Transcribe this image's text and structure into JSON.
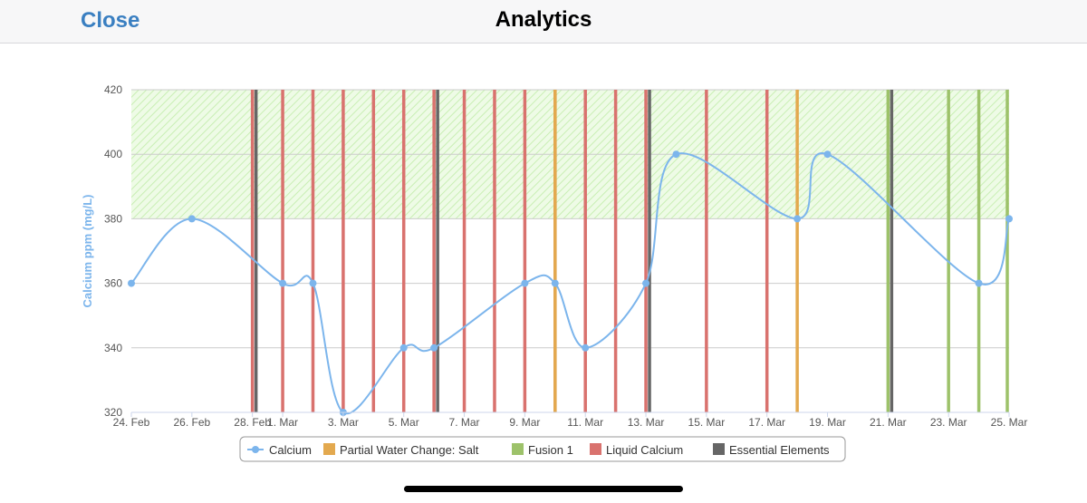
{
  "header": {
    "close_label": "Close",
    "title": "Analytics"
  },
  "colors": {
    "calcium": "#7cb5ec",
    "partial_water_change_salt": "#e3a94f",
    "fusion_1": "#9dc26a",
    "liquid_calcium": "#d9726e",
    "essential_elements": "#666666",
    "target_band": "#d8f5c8"
  },
  "chart_data": {
    "type": "line",
    "xlabel": "",
    "ylabel": "Calcium ppm (mg/L)",
    "ylim": [
      320,
      420
    ],
    "yticks": [
      320,
      340,
      360,
      380,
      400,
      420
    ],
    "xlim": [
      "24. Feb",
      "25. Mar"
    ],
    "xticks": [
      "24. Feb",
      "26. Feb",
      "28. Feb",
      "1. Mar",
      "3. Mar",
      "5. Mar",
      "7. Mar",
      "9. Mar",
      "11. Mar",
      "13. Mar",
      "15. Mar",
      "17. Mar",
      "19. Mar",
      "21. Mar",
      "23. Mar",
      "25. Mar"
    ],
    "target_range": [
      380,
      420
    ],
    "grid": true,
    "legend_position": "bottom",
    "series": [
      {
        "name": "Calcium",
        "points": [
          [
            "24. Feb",
            360
          ],
          [
            "26. Feb",
            380
          ],
          [
            "1. Mar",
            360
          ],
          [
            "2. Mar",
            360
          ],
          [
            "3. Mar",
            320
          ],
          [
            "5. Mar",
            340
          ],
          [
            "6. Mar",
            340
          ],
          [
            "9. Mar",
            360
          ],
          [
            "10. Mar",
            360
          ],
          [
            "11. Mar",
            340
          ],
          [
            "13. Mar",
            360
          ],
          [
            "14. Mar",
            400
          ],
          [
            "18. Mar",
            380
          ],
          [
            "19. Mar",
            400
          ],
          [
            "24. Mar",
            360
          ],
          [
            "25. Mar",
            380
          ]
        ]
      }
    ],
    "events": [
      {
        "name": "Partial Water Change: Salt",
        "dates": [
          "10. Mar",
          "18. Mar"
        ]
      },
      {
        "name": "Fusion 1",
        "dates": [
          "21. Mar",
          "23. Mar",
          "24. Mar",
          "25. Mar"
        ]
      },
      {
        "name": "Liquid Calcium",
        "dates": [
          "28. Feb",
          "1. Mar",
          "2. Mar",
          "3. Mar",
          "4. Mar",
          "5. Mar",
          "6. Mar",
          "7. Mar",
          "8. Mar",
          "9. Mar",
          "10. Mar",
          "11. Mar",
          "12. Mar",
          "13. Mar",
          "15. Mar",
          "17. Mar"
        ]
      },
      {
        "name": "Essential Elements",
        "dates": [
          "28. Feb",
          "6. Mar",
          "13. Mar",
          "21. Mar"
        ]
      }
    ]
  }
}
